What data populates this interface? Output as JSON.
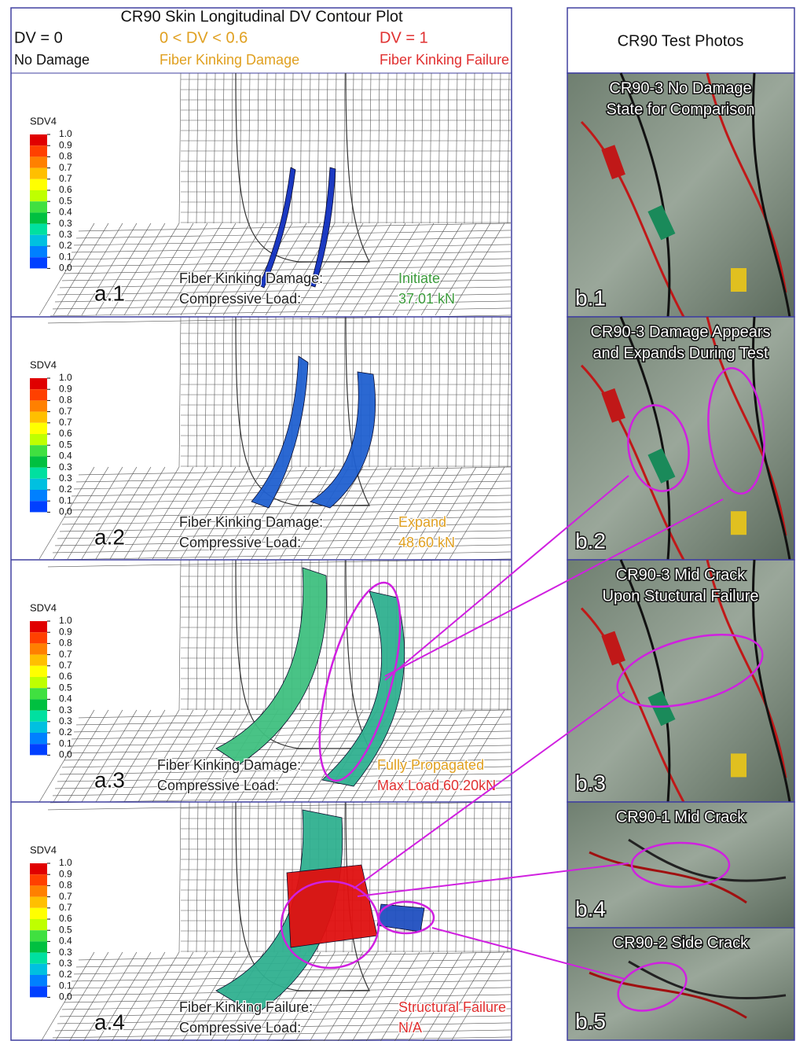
{
  "figure": {
    "left": {
      "title": "CR90 Skin Longitudinal DV Contour Plot",
      "legend": [
        {
          "label": "DV = 0",
          "description": "No Damage",
          "color": "#111111"
        },
        {
          "label": "0 < DV < 0.6",
          "description": "Fiber Kinking Damage",
          "color": "#e0a020"
        },
        {
          "label": "DV = 1",
          "description": "Fiber Kinking Failure",
          "color": "#e03030"
        }
      ],
      "colorbar_title": "SDV4",
      "colorbar_labels": [
        "1.0",
        "0.9",
        "0.8",
        "0.7",
        "0.7",
        "0.6",
        "0.5",
        "0.4",
        "0.3",
        "0.3",
        "0.2",
        "0.1",
        "0.0"
      ],
      "panels": [
        {
          "id": "a.1",
          "damage_label": "Fiber Kinking Damage:",
          "damage_state": "Initiate",
          "load_label": "Compressive Load:",
          "load_value": "37.01 kN",
          "state_color": "#3a9a3a",
          "load_color": "#3a9a3a"
        },
        {
          "id": "a.2",
          "damage_label": "Fiber Kinking Damage:",
          "damage_state": "Expand",
          "load_label": "Compressive Load:",
          "load_value": "48.60 kN",
          "state_color": "#e0a020",
          "load_color": "#e0a020"
        },
        {
          "id": "a.3",
          "damage_label": "Fiber Kinking Damage:",
          "damage_state": "Fully Propagated",
          "load_label": "Compressive Load:",
          "load_value": "Max Load  60.20kN",
          "state_color": "#e0a020",
          "load_color": "#e03030"
        },
        {
          "id": "a.4",
          "damage_label": "Fiber Kinking Failure:",
          "damage_state": "Structural Failure",
          "load_label": "Compressive Load:",
          "load_value": "N/A",
          "state_color": "#e03030",
          "load_color": "#e03030"
        }
      ]
    },
    "right": {
      "title": "CR90 Test Photos",
      "photos": [
        {
          "id": "b.1",
          "caption": [
            "CR90-3 No Damage",
            "State for Comparison"
          ]
        },
        {
          "id": "b.2",
          "caption": [
            "CR90-3 Damage  Appears",
            "and Expands During Test"
          ]
        },
        {
          "id": "b.3",
          "caption": [
            "CR90-3 Mid Crack",
            "Upon Stuctural Failure"
          ]
        },
        {
          "id": "b.4",
          "caption": [
            "CR90-1 Mid Crack"
          ]
        },
        {
          "id": "b.5",
          "caption": [
            "CR90-2 Side Crack"
          ]
        }
      ]
    }
  }
}
